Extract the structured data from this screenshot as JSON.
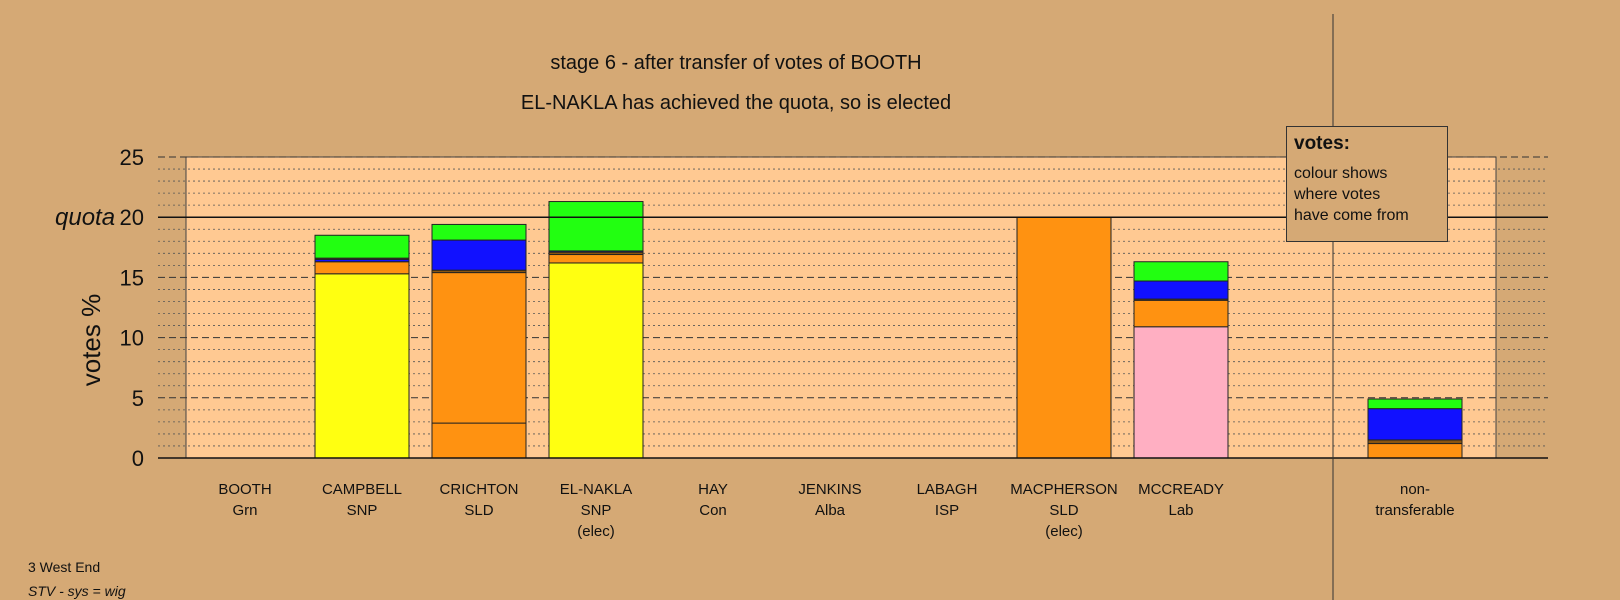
{
  "header": {
    "title": "stage 6 - after transfer of votes of BOOTH",
    "subtitle": "EL-NAKLA has achieved the quota, so is elected"
  },
  "legend": {
    "heading": "votes:",
    "lines": [
      "colour shows",
      "where votes",
      "have come from"
    ]
  },
  "footer": {
    "ward": "3 West End",
    "system": "STV - sys = wig"
  },
  "colors": {
    "background": "#D5A975",
    "plot_background": "#FFC992",
    "Grn": "#22FF11",
    "SNP": "#FFFF11",
    "SLD": "#FF9211",
    "Lab": "#FFAFC2",
    "Con": "#1111FF",
    "Alba": "#1133CC",
    "ISP": "#885511"
  },
  "chart_data": {
    "type": "bar",
    "stacked": true,
    "ylabel": "votes %",
    "quota_label": "quota",
    "quota": 20,
    "ylim": [
      0,
      25
    ],
    "yticks": [
      0,
      5,
      10,
      15,
      20,
      25
    ],
    "grid": true,
    "legend_placement": "top-right",
    "categories": [
      {
        "name": "BOOTH",
        "party": "Grn",
        "note": ""
      },
      {
        "name": "CAMPBELL",
        "party": "SNP",
        "note": ""
      },
      {
        "name": "CRICHTON",
        "party": "SLD",
        "note": ""
      },
      {
        "name": "EL-NAKLA",
        "party": "SNP",
        "note": "(elec)"
      },
      {
        "name": "HAY",
        "party": "Con",
        "note": ""
      },
      {
        "name": "JENKINS",
        "party": "Alba",
        "note": ""
      },
      {
        "name": "LABAGH",
        "party": "ISP",
        "note": ""
      },
      {
        "name": "MACPHERSON",
        "party": "SLD",
        "note": "(elec)"
      },
      {
        "name": "MCCREADY",
        "party": "Lab",
        "note": ""
      },
      {
        "name": "",
        "party": "",
        "note": ""
      },
      {
        "name": "non-",
        "party": "transferable",
        "note": ""
      }
    ],
    "stacks": [
      [],
      [
        {
          "source": "SNP",
          "value": 15.3
        },
        {
          "source": "SLD",
          "value": 1.0
        },
        {
          "source": "Con",
          "value": 0.2
        },
        {
          "source": "ISP",
          "value": 0.1
        },
        {
          "source": "Grn",
          "value": 1.9
        }
      ],
      [
        {
          "source": "SLD",
          "value": 2.9
        },
        {
          "source": "SLD",
          "value": 12.5
        },
        {
          "source": "ISP",
          "value": 0.2
        },
        {
          "source": "Con",
          "value": 2.5
        },
        {
          "source": "Grn",
          "value": 1.3
        }
      ],
      [
        {
          "source": "SNP",
          "value": 16.2
        },
        {
          "source": "SLD",
          "value": 0.7
        },
        {
          "source": "ISP",
          "value": 0.2
        },
        {
          "source": "Con",
          "value": 0.1
        },
        {
          "source": "Grn",
          "value": 4.1
        }
      ],
      [],
      [],
      [],
      [
        {
          "source": "SLD",
          "value": 20.0
        }
      ],
      [
        {
          "source": "Lab",
          "value": 10.9
        },
        {
          "source": "SLD",
          "value": 2.2
        },
        {
          "source": "ISP",
          "value": 0.1
        },
        {
          "source": "Con",
          "value": 1.5
        },
        {
          "source": "Grn",
          "value": 1.6
        }
      ],
      [],
      [
        {
          "source": "SLD",
          "value": 1.2
        },
        {
          "source": "ISP",
          "value": 0.3
        },
        {
          "source": "Con",
          "value": 2.6
        },
        {
          "source": "Grn",
          "value": 0.8
        }
      ]
    ]
  }
}
